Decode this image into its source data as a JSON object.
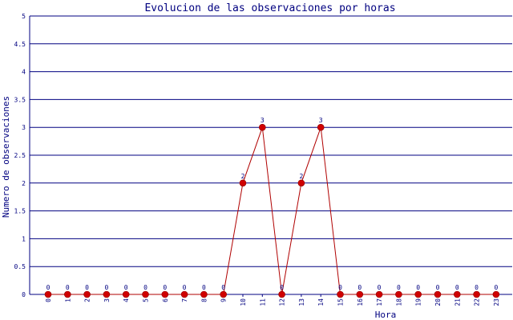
{
  "colors": {
    "background": "#ffffff",
    "grid": "#000080",
    "axis": "#000080",
    "text": "#000080",
    "series_line": "#b00000",
    "series_marker": "#d00000"
  },
  "chart_data": {
    "type": "line",
    "title": "Evolucion de las observaciones por horas",
    "xlabel": "Hora",
    "ylabel": "Numero de observaciones",
    "categories": [
      "0",
      "1",
      "2",
      "3",
      "4",
      "5",
      "6",
      "7",
      "8",
      "9",
      "10",
      "11",
      "12",
      "13",
      "14",
      "15",
      "16",
      "17",
      "18",
      "19",
      "20",
      "21",
      "22",
      "23"
    ],
    "series": [
      {
        "values": [
          0,
          0,
          0,
          0,
          0,
          0,
          0,
          0,
          0,
          0,
          2,
          3,
          0,
          2,
          3,
          0,
          0,
          0,
          0,
          0,
          0,
          0,
          0,
          0
        ]
      }
    ],
    "data_labels": [
      "0",
      "0",
      "0",
      "0",
      "0",
      "0",
      "0",
      "0",
      "0",
      "0",
      "2",
      "3",
      "0",
      "2",
      "3",
      "0",
      "0",
      "0",
      "0",
      "0",
      "0",
      "0",
      "0",
      "0"
    ],
    "y_ticks": [
      "0",
      "0.5",
      "1",
      "1.5",
      "2",
      "2.5",
      "3",
      "3.5",
      "4",
      "4.5",
      "5"
    ],
    "ylim": [
      0,
      5
    ],
    "grid": true,
    "grid_axis": "y",
    "legend": "none"
  }
}
